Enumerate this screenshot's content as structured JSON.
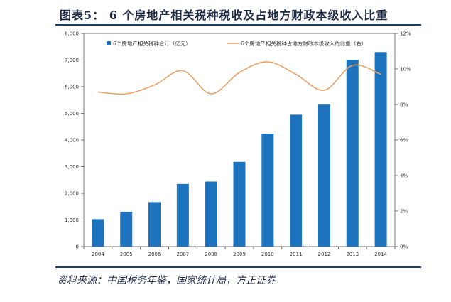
{
  "title": "图表5：  6 个房地产相关税种税收及占地方财政本级收入比重",
  "source": "资料来源：中国税务年鉴，国家统计局，方正证券",
  "colors": {
    "bar": "#1e73be",
    "line": "#e8a36a",
    "axis": "#555555",
    "text": "#333333"
  },
  "chart_data": {
    "type": "bar+line",
    "categories": [
      "2004",
      "2005",
      "2006",
      "2007",
      "2008",
      "2009",
      "2010",
      "2011",
      "2012",
      "2013",
      "2014"
    ],
    "series": [
      {
        "name": "6个房地产相关税种合计（亿元）",
        "type": "bar",
        "axis": "left",
        "values": [
          1030,
          1300,
          1670,
          2350,
          2440,
          3180,
          4240,
          4950,
          5330,
          7010,
          7300
        ]
      },
      {
        "name": "6个房地产相关税种占地方财政本级收入的比重（右）",
        "type": "line",
        "axis": "right",
        "values": [
          8.7,
          8.6,
          9.1,
          9.9,
          8.6,
          9.8,
          10.4,
          9.7,
          8.8,
          10.2,
          9.7
        ]
      }
    ],
    "y_left": {
      "min": 0,
      "max": 8000,
      "ticks": [
        "0",
        "1,000",
        "2,000",
        "3,000",
        "4,000",
        "5,000",
        "6,000",
        "7,000",
        "8,000"
      ]
    },
    "y_right": {
      "min": 0,
      "max": 12,
      "ticks": [
        "0%",
        "2%",
        "4%",
        "6%",
        "8%",
        "10%",
        "12%"
      ]
    },
    "legend_placement": "top",
    "grid": false
  }
}
